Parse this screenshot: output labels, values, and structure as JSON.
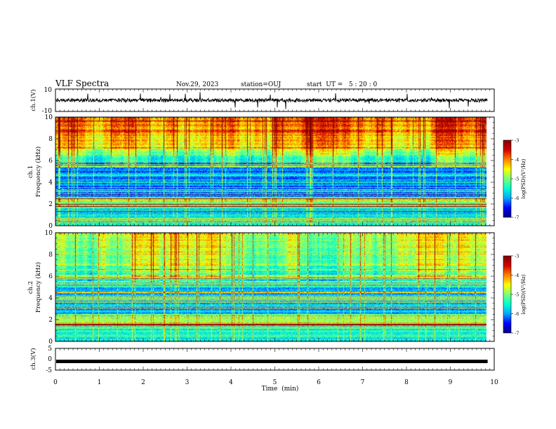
{
  "header": {
    "title": "VLF Spectra",
    "date": "Nov.29, 2023",
    "station": "station=OUJ",
    "start": "start  UT =   5 : 20 : 0"
  },
  "colors": {
    "colormap": [
      "#00007f",
      "#0000ff",
      "#00a8ff",
      "#00ffd0",
      "#7cff7c",
      "#ffff00",
      "#ff8000",
      "#d00000",
      "#7f0000"
    ]
  },
  "chart_data": {
    "type": "heatmap",
    "xlabel": "Time  (min)",
    "xlim": [
      0,
      10
    ],
    "xticks": [
      "0",
      "1",
      "2",
      "3",
      "4",
      "5",
      "6",
      "7",
      "8",
      "9",
      "10"
    ],
    "data_end_min": 9.85,
    "panels": [
      {
        "id": "ch1-waveform",
        "type": "line",
        "ylabel": "ch.1(V)",
        "ylim": [
          -10,
          10
        ],
        "yticks": [
          "10",
          "-10"
        ],
        "baseline": 0,
        "noise_amplitude": 1.5,
        "spikes_min": [
          0.73,
          1.93,
          2.6,
          2.96,
          3.3,
          4.1,
          4.6,
          4.9,
          5.05,
          5.25,
          6.38,
          8.02,
          8.98,
          9.4
        ]
      },
      {
        "id": "ch1-spectrogram",
        "type": "heatmap",
        "ylabel": "ch.1\nFrequency  (kHz)",
        "ylim": [
          0,
          10
        ],
        "yticks": [
          "0",
          "2",
          "4",
          "6",
          "8",
          "10"
        ],
        "colorbar": {
          "label": "log(PSD)(V²/Hz)",
          "range": [
            -7,
            -3
          ],
          "ticks": [
            "-3",
            "-4",
            "-5",
            "-6",
            "-7"
          ]
        }
      },
      {
        "id": "ch2-spectrogram",
        "type": "heatmap",
        "ylabel": "ch.2\nFrequency  (kHz)",
        "ylim": [
          0,
          10
        ],
        "yticks": [
          "0",
          "2",
          "4",
          "6",
          "8",
          "10"
        ],
        "colorbar": {
          "label": "log(PSD)(V²/Hz)",
          "range": [
            -7,
            -3
          ],
          "ticks": [
            "-3",
            "-4",
            "-5",
            "-6",
            "-7"
          ]
        }
      },
      {
        "id": "ch3-waveform",
        "type": "line",
        "ylabel": "ch.3(V)",
        "ylim": [
          -5,
          5
        ],
        "yticks": [
          "5",
          "0",
          "-5"
        ],
        "baseline": -1,
        "noise_amplitude": 0.3
      }
    ]
  }
}
